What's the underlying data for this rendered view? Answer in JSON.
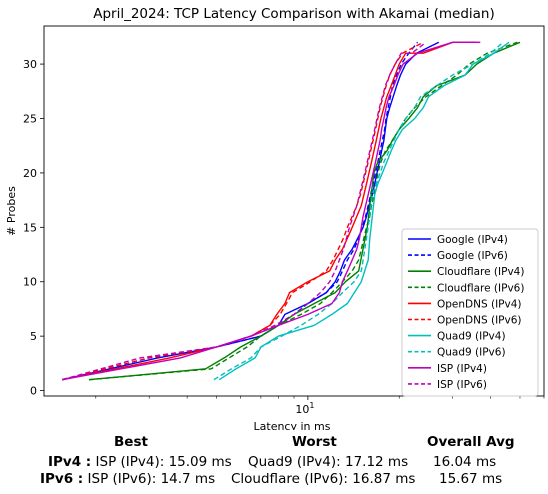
{
  "chart_data": {
    "type": "line",
    "title": "April_2024: TCP Latency Comparison with Akamai (median)",
    "xlabel": "Latency in ms",
    "ylabel": "# Probes",
    "xscale": "log",
    "xlim": [
      1.35,
      60
    ],
    "ylim": [
      -0.5,
      33.5
    ],
    "yticks": [
      0,
      5,
      10,
      15,
      20,
      25,
      30
    ],
    "xticks": [
      {
        "value": 10,
        "label": "10^1"
      }
    ],
    "grid": false,
    "legend_position": "lower-right",
    "series": [
      {
        "name": "Google (IPv4)",
        "color": "#0000ff",
        "dash": false,
        "points": [
          [
            1.55,
            1
          ],
          [
            3.2,
            3
          ],
          [
            5.0,
            4
          ],
          [
            7.0,
            5
          ],
          [
            8.0,
            6
          ],
          [
            8.4,
            7
          ],
          [
            10.0,
            8
          ],
          [
            11.5,
            9
          ],
          [
            12.3,
            10
          ],
          [
            12.8,
            11
          ],
          [
            13.2,
            12
          ],
          [
            14.0,
            13
          ],
          [
            14.6,
            14
          ],
          [
            15.2,
            15
          ],
          [
            15.6,
            16
          ],
          [
            15.9,
            17
          ],
          [
            16.3,
            18
          ],
          [
            16.6,
            19
          ],
          [
            16.9,
            20
          ],
          [
            17.2,
            21
          ],
          [
            17.5,
            22
          ],
          [
            17.8,
            23
          ],
          [
            18.0,
            24
          ],
          [
            18.2,
            25
          ],
          [
            18.6,
            26
          ],
          [
            19.1,
            27
          ],
          [
            19.6,
            28
          ],
          [
            20.2,
            29
          ],
          [
            21.0,
            30
          ],
          [
            22.8,
            31
          ],
          [
            27.0,
            32
          ]
        ]
      },
      {
        "name": "Google (IPv6)",
        "color": "#0000ff",
        "dash": true,
        "points": [
          [
            1.55,
            1
          ],
          [
            3.0,
            3
          ],
          [
            5.0,
            4
          ],
          [
            7.0,
            5
          ],
          [
            8.0,
            6
          ],
          [
            9.0,
            7
          ],
          [
            10.0,
            8
          ],
          [
            11.5,
            9
          ],
          [
            12.5,
            10
          ],
          [
            13.0,
            11
          ],
          [
            13.5,
            12
          ],
          [
            14.2,
            13
          ],
          [
            14.7,
            14
          ],
          [
            15.1,
            15
          ],
          [
            15.5,
            16
          ],
          [
            15.8,
            17
          ],
          [
            16.1,
            18
          ],
          [
            16.4,
            19
          ],
          [
            16.7,
            20
          ],
          [
            17.0,
            21
          ],
          [
            17.3,
            22
          ],
          [
            17.6,
            23
          ],
          [
            17.9,
            24
          ],
          [
            18.1,
            25
          ],
          [
            18.4,
            26
          ],
          [
            18.7,
            27
          ],
          [
            19.0,
            28
          ],
          [
            19.6,
            29
          ],
          [
            20.3,
            30
          ],
          [
            21.5,
            31
          ],
          [
            23.0,
            32
          ]
        ]
      },
      {
        "name": "Cloudflare (IPv4)",
        "color": "#008000",
        "dash": false,
        "points": [
          [
            1.9,
            1
          ],
          [
            4.6,
            2
          ],
          [
            5.3,
            3
          ],
          [
            6.0,
            4
          ],
          [
            7.0,
            5
          ],
          [
            8.0,
            6
          ],
          [
            9.0,
            7
          ],
          [
            10.5,
            8
          ],
          [
            12.3,
            9
          ],
          [
            13.3,
            10
          ],
          [
            14.7,
            11
          ],
          [
            15.7,
            15
          ],
          [
            16.0,
            17
          ],
          [
            16.5,
            20
          ],
          [
            17.0,
            21
          ],
          [
            18.2,
            22
          ],
          [
            19.0,
            23
          ],
          [
            20.0,
            24
          ],
          [
            21.5,
            25
          ],
          [
            23.0,
            26
          ],
          [
            24.0,
            27
          ],
          [
            26.5,
            28
          ],
          [
            33.0,
            29
          ],
          [
            36.0,
            30
          ],
          [
            41.0,
            31
          ],
          [
            50.0,
            32
          ]
        ]
      },
      {
        "name": "Cloudflare (IPv6)",
        "color": "#008000",
        "dash": true,
        "points": [
          [
            1.9,
            1
          ],
          [
            4.8,
            2
          ],
          [
            5.5,
            3
          ],
          [
            6.3,
            4
          ],
          [
            7.0,
            5
          ],
          [
            8.0,
            6
          ],
          [
            9.5,
            7
          ],
          [
            11.0,
            8
          ],
          [
            12.0,
            9
          ],
          [
            13.0,
            10
          ],
          [
            14.0,
            11
          ],
          [
            14.7,
            12
          ],
          [
            15.0,
            13
          ],
          [
            15.3,
            14
          ],
          [
            15.6,
            15
          ],
          [
            16.0,
            16
          ],
          [
            16.2,
            17
          ],
          [
            16.5,
            18
          ],
          [
            16.8,
            19
          ],
          [
            17.0,
            20
          ],
          [
            17.4,
            21
          ],
          [
            18.0,
            22
          ],
          [
            19.0,
            23
          ],
          [
            20.0,
            24
          ],
          [
            21.0,
            25
          ],
          [
            22.5,
            26
          ],
          [
            24.5,
            27
          ],
          [
            27.5,
            28
          ],
          [
            31.0,
            29
          ],
          [
            34.0,
            30
          ],
          [
            39.0,
            31
          ],
          [
            49.0,
            32
          ]
        ]
      },
      {
        "name": "OpenDNS (IPv4)",
        "color": "#ff0000",
        "dash": false,
        "points": [
          [
            1.55,
            1
          ],
          [
            3.5,
            3
          ],
          [
            5.0,
            4
          ],
          [
            6.5,
            5
          ],
          [
            7.5,
            6
          ],
          [
            7.9,
            7
          ],
          [
            8.4,
            8
          ],
          [
            8.7,
            9
          ],
          [
            10.0,
            10
          ],
          [
            11.8,
            11
          ],
          [
            12.3,
            12
          ],
          [
            13.0,
            13
          ],
          [
            13.5,
            14
          ],
          [
            14.0,
            15
          ],
          [
            14.5,
            16
          ],
          [
            15.0,
            17
          ],
          [
            15.3,
            18
          ],
          [
            15.6,
            19
          ],
          [
            15.9,
            20
          ],
          [
            16.2,
            21
          ],
          [
            16.5,
            22
          ],
          [
            16.8,
            23
          ],
          [
            17.1,
            24
          ],
          [
            17.4,
            25
          ],
          [
            17.8,
            26
          ],
          [
            18.2,
            27
          ],
          [
            18.8,
            28
          ],
          [
            19.4,
            29
          ],
          [
            20.0,
            30
          ],
          [
            21.0,
            31
          ],
          [
            24.0,
            31
          ],
          [
            30.0,
            32
          ],
          [
            36.0,
            32
          ]
        ]
      },
      {
        "name": "OpenDNS (IPv6)",
        "color": "#ff0000",
        "dash": true,
        "points": [
          [
            1.55,
            1
          ],
          [
            3.0,
            3
          ],
          [
            5.0,
            4
          ],
          [
            6.5,
            5
          ],
          [
            7.5,
            6
          ],
          [
            8.1,
            7
          ],
          [
            8.5,
            8
          ],
          [
            8.9,
            9
          ],
          [
            10.2,
            10
          ],
          [
            11.5,
            11
          ],
          [
            12.1,
            12
          ],
          [
            12.6,
            13
          ],
          [
            13.1,
            14
          ],
          [
            13.5,
            15
          ],
          [
            14.0,
            16
          ],
          [
            14.5,
            17
          ],
          [
            14.9,
            18
          ],
          [
            15.2,
            19
          ],
          [
            15.5,
            20
          ],
          [
            15.8,
            21
          ],
          [
            16.1,
            22
          ],
          [
            16.4,
            23
          ],
          [
            16.7,
            24
          ],
          [
            17.0,
            25
          ],
          [
            17.3,
            26
          ],
          [
            17.7,
            27
          ],
          [
            18.1,
            28
          ],
          [
            18.6,
            29
          ],
          [
            19.4,
            30
          ],
          [
            20.5,
            31
          ],
          [
            24.0,
            32
          ]
        ]
      },
      {
        "name": "Quad9 (IPv4)",
        "color": "#00bfbf",
        "dash": false,
        "points": [
          [
            5.1,
            1
          ],
          [
            5.8,
            2
          ],
          [
            6.7,
            3
          ],
          [
            7.0,
            4
          ],
          [
            8.0,
            5
          ],
          [
            10.5,
            6
          ],
          [
            12.0,
            7
          ],
          [
            13.5,
            8
          ],
          [
            15.0,
            10
          ],
          [
            15.8,
            12
          ],
          [
            16.0,
            14
          ],
          [
            16.3,
            16
          ],
          [
            16.6,
            18
          ],
          [
            17.0,
            19
          ],
          [
            17.6,
            20
          ],
          [
            18.2,
            21
          ],
          [
            18.8,
            22
          ],
          [
            19.5,
            23
          ],
          [
            20.5,
            24
          ],
          [
            22.5,
            25
          ],
          [
            24.0,
            26
          ],
          [
            25.0,
            27
          ],
          [
            28.0,
            28
          ],
          [
            33.0,
            29
          ],
          [
            35.0,
            30
          ],
          [
            41.0,
            31
          ],
          [
            46.0,
            32
          ]
        ]
      },
      {
        "name": "Quad9 (IPv6)",
        "color": "#00bfbf",
        "dash": true,
        "points": [
          [
            4.9,
            1
          ],
          [
            5.6,
            2
          ],
          [
            6.5,
            3
          ],
          [
            7.0,
            4
          ],
          [
            8.2,
            5
          ],
          [
            9.5,
            6
          ],
          [
            10.8,
            7
          ],
          [
            12.0,
            8
          ],
          [
            13.0,
            9
          ],
          [
            14.2,
            10
          ],
          [
            15.0,
            11
          ],
          [
            15.2,
            12
          ],
          [
            15.6,
            14
          ],
          [
            16.0,
            16
          ],
          [
            16.3,
            18
          ],
          [
            16.8,
            19
          ],
          [
            17.3,
            20
          ],
          [
            17.8,
            21
          ],
          [
            18.5,
            22
          ],
          [
            19.2,
            23
          ],
          [
            20.0,
            24
          ],
          [
            21.0,
            25
          ],
          [
            22.5,
            26
          ],
          [
            23.5,
            27
          ],
          [
            26.5,
            28
          ],
          [
            30.0,
            29
          ],
          [
            35.0,
            30
          ],
          [
            40.0,
            31
          ],
          [
            44.0,
            32
          ]
        ]
      },
      {
        "name": "ISP (IPv4)",
        "color": "#bf00bf",
        "dash": false,
        "points": [
          [
            1.55,
            1
          ],
          [
            3.8,
            3
          ],
          [
            5.0,
            4
          ],
          [
            6.5,
            5
          ],
          [
            8.0,
            6
          ],
          [
            10.0,
            7
          ],
          [
            12.0,
            8
          ],
          [
            12.7,
            9
          ],
          [
            13.0,
            10
          ],
          [
            13.5,
            11
          ],
          [
            14.0,
            12
          ],
          [
            14.5,
            13
          ],
          [
            14.8,
            14
          ],
          [
            15.0,
            15
          ],
          [
            15.2,
            16
          ],
          [
            15.5,
            17
          ],
          [
            15.8,
            18
          ],
          [
            16.1,
            19
          ],
          [
            16.4,
            20
          ],
          [
            16.7,
            21
          ],
          [
            17.0,
            22
          ],
          [
            17.3,
            23
          ],
          [
            17.5,
            24
          ],
          [
            17.8,
            25
          ],
          [
            18.1,
            26
          ],
          [
            18.5,
            27
          ],
          [
            19.2,
            28
          ],
          [
            19.8,
            29
          ],
          [
            20.6,
            30
          ],
          [
            23.0,
            31
          ],
          [
            30.0,
            32
          ],
          [
            37.0,
            32
          ]
        ]
      },
      {
        "name": "ISP (IPv6)",
        "color": "#bf00bf",
        "dash": true,
        "points": [
          [
            1.55,
            1
          ],
          [
            2.8,
            3
          ],
          [
            5.0,
            4
          ],
          [
            6.5,
            5
          ],
          [
            7.8,
            6
          ],
          [
            9.0,
            7
          ],
          [
            10.0,
            8
          ],
          [
            11.0,
            9
          ],
          [
            11.8,
            10
          ],
          [
            12.3,
            11
          ],
          [
            12.7,
            12
          ],
          [
            13.1,
            13
          ],
          [
            13.4,
            14
          ],
          [
            13.7,
            15
          ],
          [
            14.1,
            16
          ],
          [
            14.5,
            17
          ],
          [
            14.8,
            18
          ],
          [
            15.1,
            19
          ],
          [
            15.4,
            20
          ],
          [
            15.7,
            21
          ],
          [
            16.0,
            22
          ],
          [
            16.3,
            23
          ],
          [
            16.6,
            24
          ],
          [
            16.9,
            25
          ],
          [
            17.2,
            26
          ],
          [
            17.6,
            27
          ],
          [
            18.0,
            28
          ],
          [
            18.6,
            29
          ],
          [
            19.4,
            30
          ],
          [
            20.3,
            31
          ],
          [
            22.0,
            31
          ],
          [
            24.5,
            32
          ]
        ]
      }
    ]
  },
  "summary": {
    "headers": {
      "best": "Best",
      "worst": "Worst",
      "avg": "Overall Avg"
    },
    "ipv4": {
      "label": "IPv4 :",
      "best": "ISP (IPv4): 15.09 ms",
      "worst": "Quad9 (IPv4): 17.12 ms",
      "avg": "16.04 ms"
    },
    "ipv6": {
      "label": "IPv6 :",
      "best": "ISP (IPv6): 14.7 ms",
      "worst": "Cloudflare (IPv6): 16.87 ms",
      "avg": "15.67 ms"
    }
  }
}
